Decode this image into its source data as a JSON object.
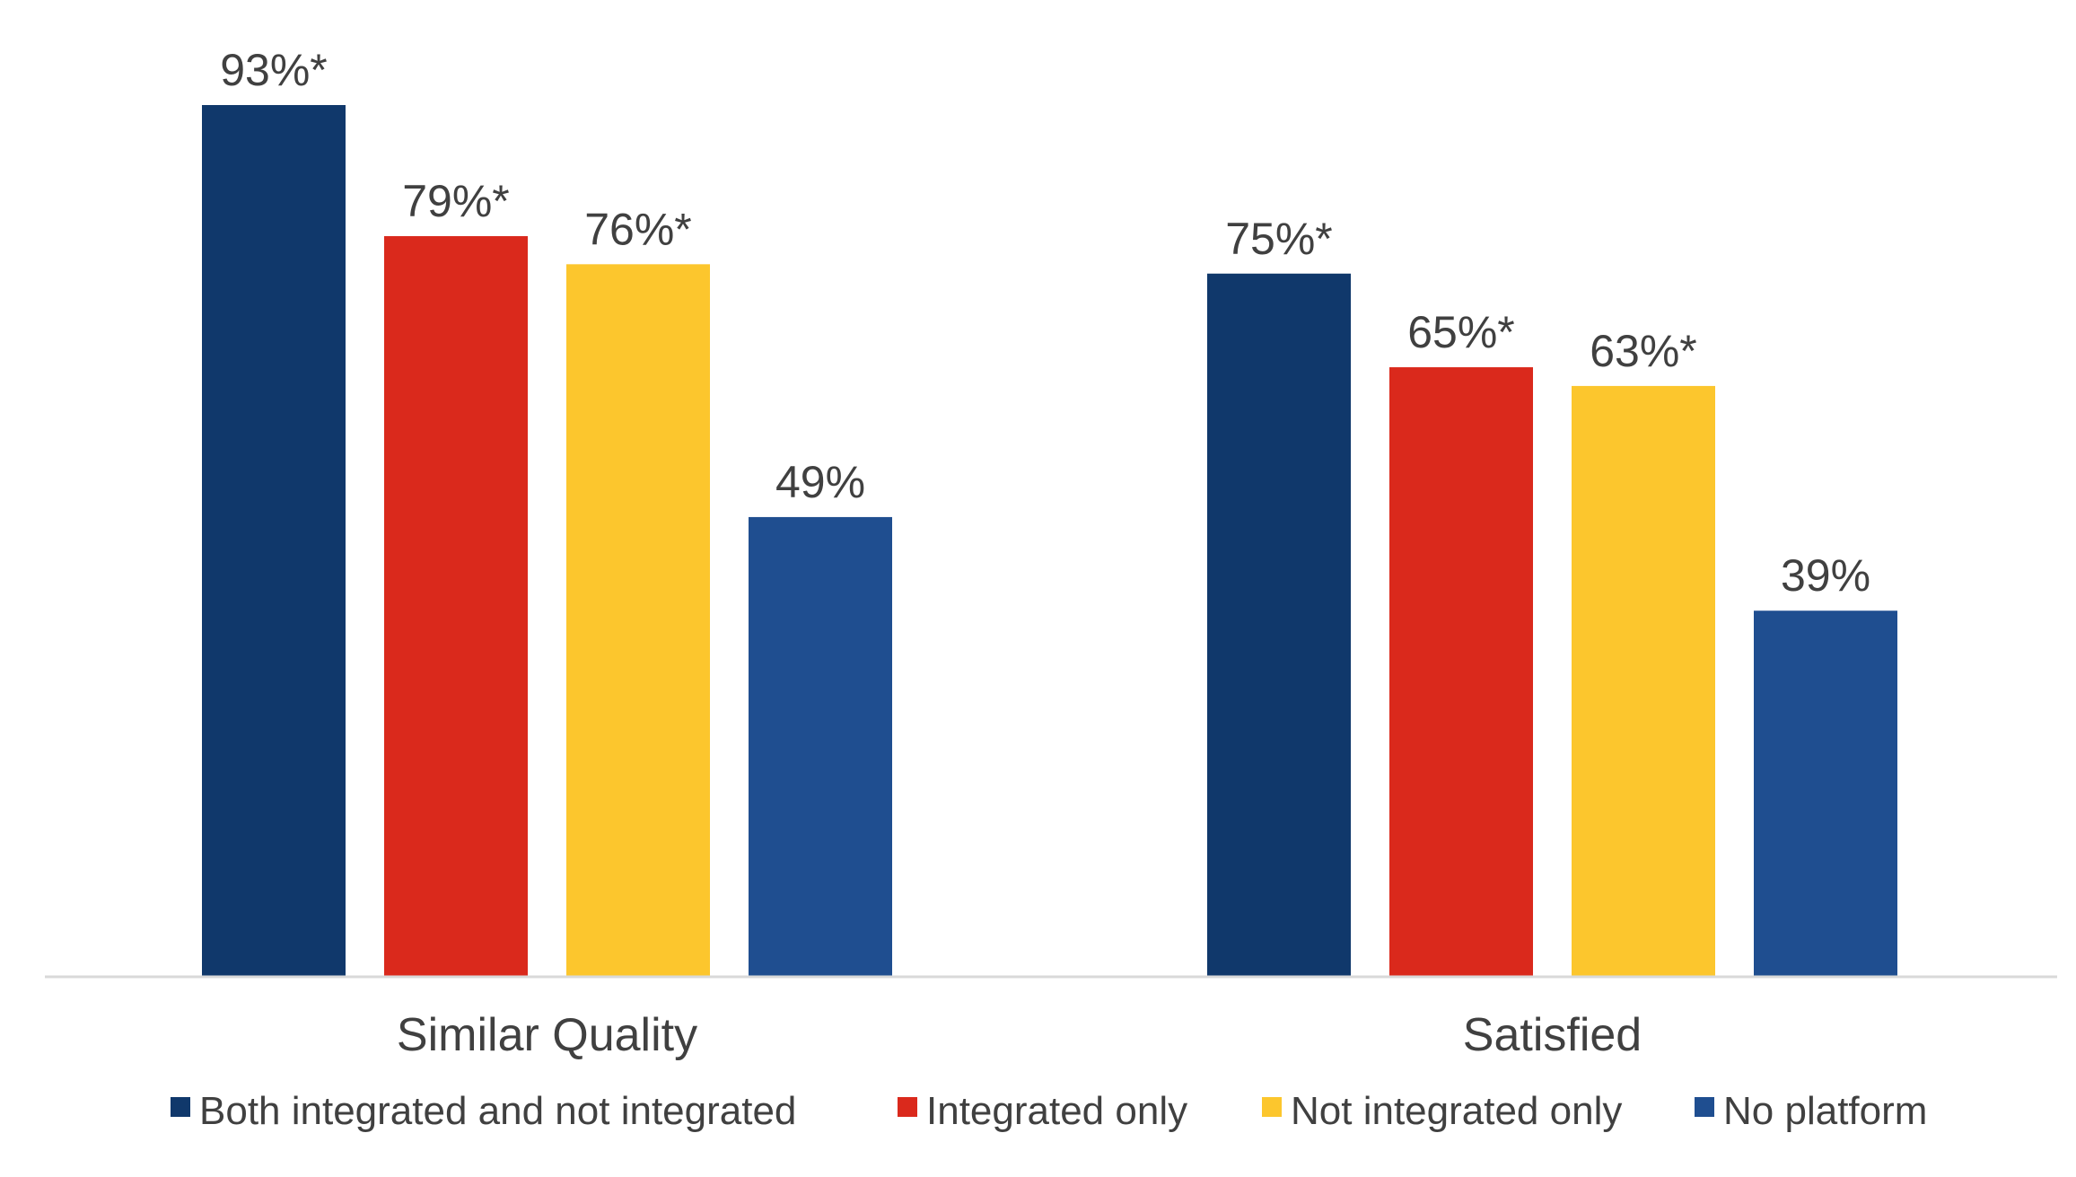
{
  "chart_data": {
    "type": "bar",
    "title": "",
    "xlabel": "",
    "ylabel": "",
    "ylim": [
      0,
      100
    ],
    "grid": false,
    "legend_position": "bottom",
    "categories": [
      "Similar Quality",
      "Satisfied"
    ],
    "series": [
      {
        "name": "Both integrated and not integrated",
        "color": "#10386B",
        "values": [
          93,
          75
        ],
        "labels": [
          "93%*",
          "75%*"
        ]
      },
      {
        "name": "Integrated only",
        "color": "#DA291C",
        "values": [
          79,
          65
        ],
        "labels": [
          "79%*",
          "65%*"
        ]
      },
      {
        "name": "Not integrated only",
        "color": "#FCC62D",
        "values": [
          76,
          63
        ],
        "labels": [
          "76%*",
          "63%*"
        ]
      },
      {
        "name": "No platform",
        "color": "#1F4E90",
        "values": [
          49,
          39
        ],
        "labels": [
          "49%",
          "39%"
        ]
      }
    ],
    "axis_color": "#D9D9D9"
  }
}
